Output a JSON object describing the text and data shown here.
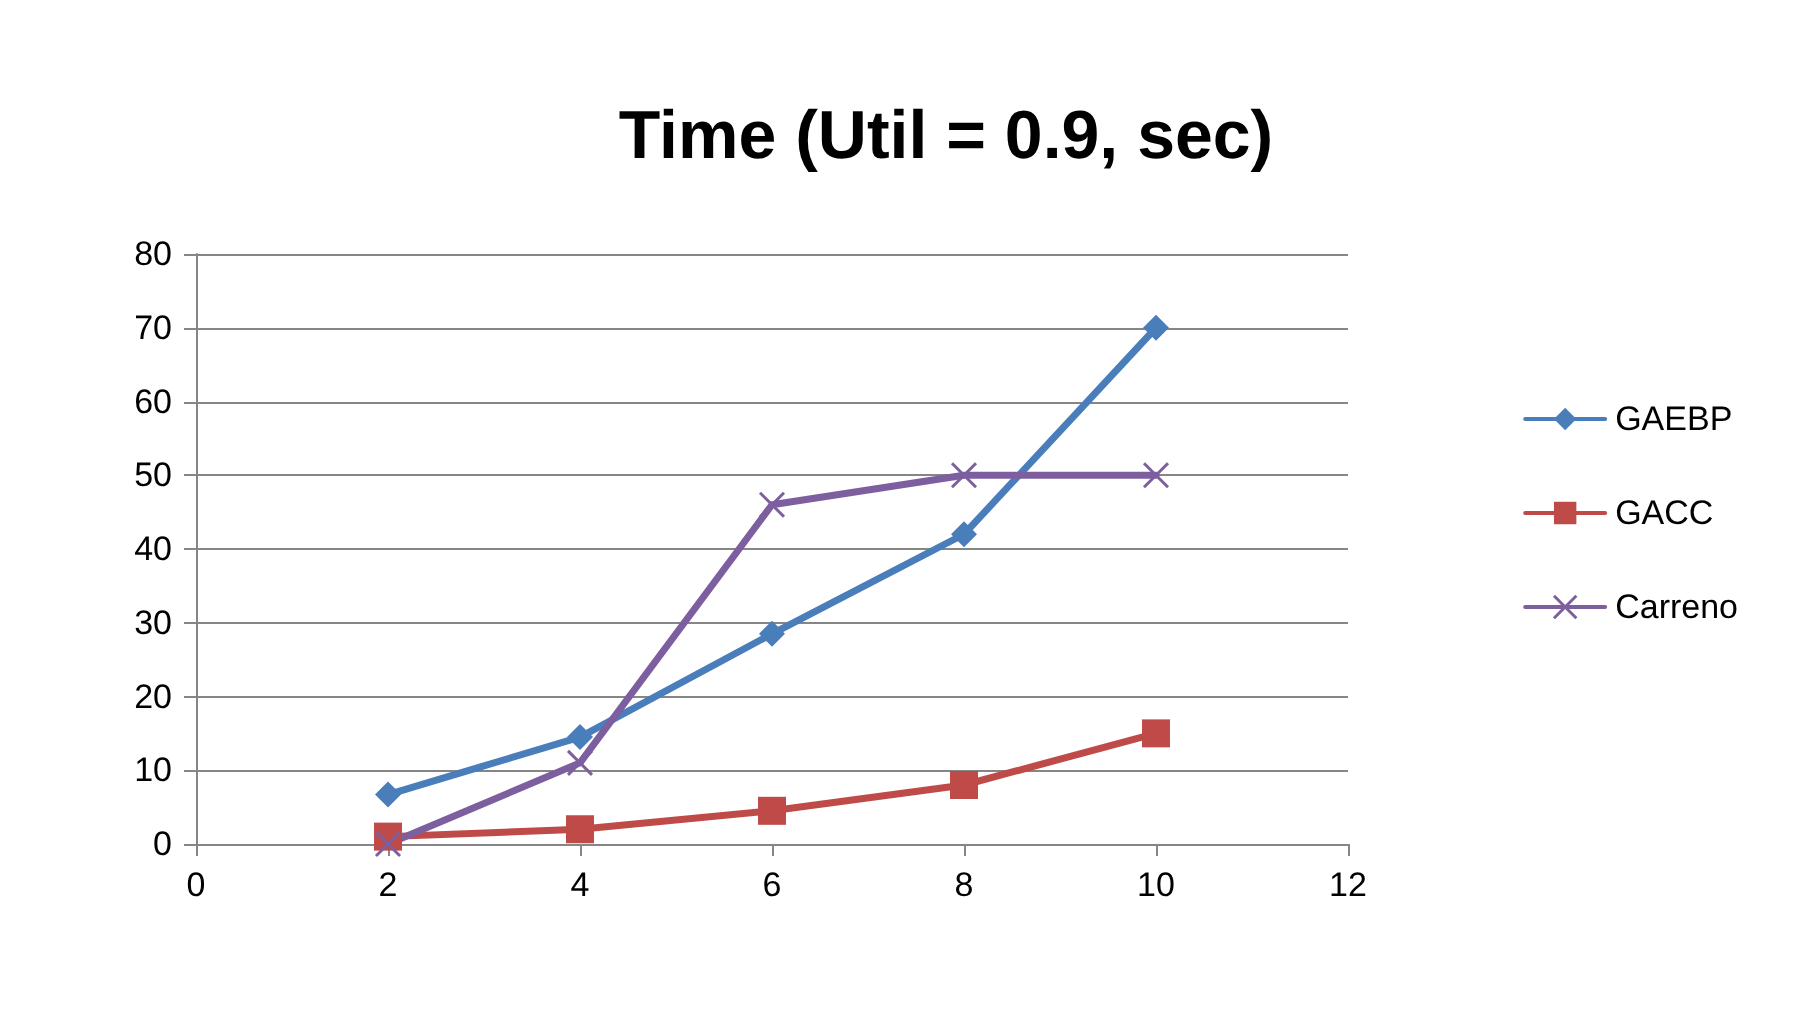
{
  "chart_data": {
    "type": "line",
    "title": "Time (Util = 0.9, sec)",
    "x": [
      2,
      4,
      6,
      8,
      10
    ],
    "series": [
      {
        "name": "GAEBP",
        "color": "#4a7ebb",
        "marker": "diamond",
        "values": [
          6.7,
          14.5,
          28.5,
          42,
          70
        ]
      },
      {
        "name": "GACC",
        "color": "#be4b48",
        "marker": "square",
        "values": [
          1,
          2,
          4.5,
          8,
          15
        ]
      },
      {
        "name": "Carreno",
        "color": "#7d5fa0",
        "marker": "cross",
        "values": [
          0,
          11,
          46,
          50,
          50
        ]
      }
    ],
    "xlim": [
      0,
      12
    ],
    "xticks": [
      0,
      2,
      4,
      6,
      8,
      10,
      12
    ],
    "ylim": [
      0,
      80
    ],
    "yticks": [
      0,
      10,
      20,
      30,
      40,
      50,
      60,
      70,
      80
    ],
    "grid": "y",
    "legend": "right"
  }
}
